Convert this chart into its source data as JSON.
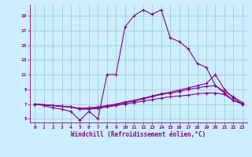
{
  "title": "",
  "xlabel": "Windchill (Refroidissement éolien,°C)",
  "ylabel": "",
  "bg_color": "#cceeff",
  "line_color": "#880088",
  "grid_color": "#99ccbb",
  "xlim": [
    -0.5,
    23.5
  ],
  "ylim": [
    4.5,
    20.5
  ],
  "xticks": [
    0,
    1,
    2,
    3,
    4,
    5,
    6,
    7,
    8,
    9,
    10,
    11,
    12,
    13,
    14,
    15,
    16,
    17,
    18,
    19,
    20,
    21,
    22,
    23
  ],
  "yticks": [
    5,
    7,
    9,
    11,
    13,
    15,
    17,
    19
  ],
  "lines": [
    {
      "x": [
        0,
        1,
        2,
        3,
        4,
        5,
        6,
        7,
        8,
        9,
        10,
        11,
        12,
        13,
        14,
        15,
        16,
        17,
        18,
        19,
        20,
        21,
        22,
        23
      ],
      "y": [
        7.0,
        6.8,
        6.5,
        6.3,
        6.0,
        4.8,
        6.0,
        5.0,
        11.0,
        11.0,
        17.5,
        19.0,
        19.8,
        19.2,
        19.8,
        16.0,
        15.5,
        14.5,
        12.5,
        12.0,
        9.5,
        8.5,
        7.5,
        7.0
      ]
    },
    {
      "x": [
        0,
        1,
        2,
        3,
        4,
        5,
        6,
        7,
        8,
        9,
        10,
        11,
        12,
        13,
        14,
        15,
        16,
        17,
        18,
        19,
        20,
        21,
        22,
        23
      ],
      "y": [
        7.0,
        6.9,
        6.8,
        6.7,
        6.6,
        6.4,
        6.5,
        6.6,
        6.8,
        7.0,
        7.3,
        7.5,
        7.8,
        8.1,
        8.4,
        8.6,
        8.9,
        9.2,
        9.5,
        9.8,
        11.0,
        9.0,
        7.8,
        7.0
      ]
    },
    {
      "x": [
        0,
        1,
        2,
        3,
        4,
        5,
        6,
        7,
        8,
        9,
        10,
        11,
        12,
        13,
        14,
        15,
        16,
        17,
        18,
        19,
        20,
        21,
        22,
        23
      ],
      "y": [
        7.0,
        6.9,
        6.8,
        6.7,
        6.6,
        6.4,
        6.4,
        6.5,
        6.7,
        6.9,
        7.2,
        7.4,
        7.7,
        8.0,
        8.3,
        8.5,
        8.7,
        9.0,
        9.2,
        9.4,
        9.5,
        8.7,
        8.0,
        7.2
      ]
    },
    {
      "x": [
        0,
        1,
        2,
        3,
        4,
        5,
        6,
        7,
        8,
        9,
        10,
        11,
        12,
        13,
        14,
        15,
        16,
        17,
        18,
        19,
        20,
        21,
        22,
        23
      ],
      "y": [
        7.0,
        6.9,
        6.8,
        6.7,
        6.6,
        6.3,
        6.3,
        6.4,
        6.6,
        6.8,
        7.0,
        7.2,
        7.4,
        7.6,
        7.8,
        8.0,
        8.1,
        8.2,
        8.4,
        8.5,
        8.5,
        8.3,
        7.5,
        7.0
      ]
    }
  ]
}
